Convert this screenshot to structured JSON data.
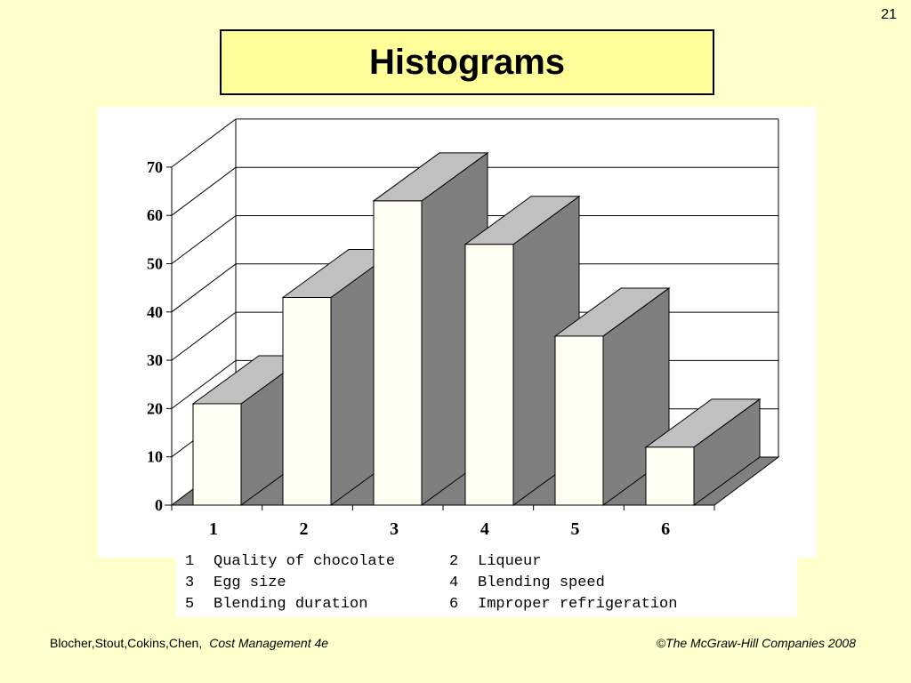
{
  "slide_number": "21",
  "title": "Histograms",
  "chart_data": {
    "type": "bar",
    "title": "",
    "xlabel": "",
    "ylabel": "",
    "categories": [
      "1",
      "2",
      "3",
      "4",
      "5",
      "6"
    ],
    "values": [
      21,
      43,
      63,
      54,
      35,
      12
    ],
    "ylim": [
      0,
      70
    ],
    "yticks": [
      "0",
      "10",
      "20",
      "30",
      "40",
      "50",
      "60",
      "70"
    ],
    "grid": true,
    "three_d": true,
    "colors": {
      "bar_front": "#fffff4",
      "bar_side": "#7f7f7f",
      "bar_top": "#c0c0c0",
      "floor": "#808080",
      "grid": "#000000"
    }
  },
  "legend": {
    "items": [
      {
        "num": "1",
        "label": "Quality of chocolate"
      },
      {
        "num": "2",
        "label": "Liqueur"
      },
      {
        "num": "3",
        "label": "Egg size"
      },
      {
        "num": "4",
        "label": "Blending speed"
      },
      {
        "num": "5",
        "label": "Blending duration"
      },
      {
        "num": "6",
        "label": "Improper refrigeration"
      }
    ]
  },
  "footer": {
    "authors": "Blocher,Stout,Cokins,Chen,",
    "book": "Cost Management 4e",
    "copyright": "©The McGraw-Hill Companies 2008"
  }
}
